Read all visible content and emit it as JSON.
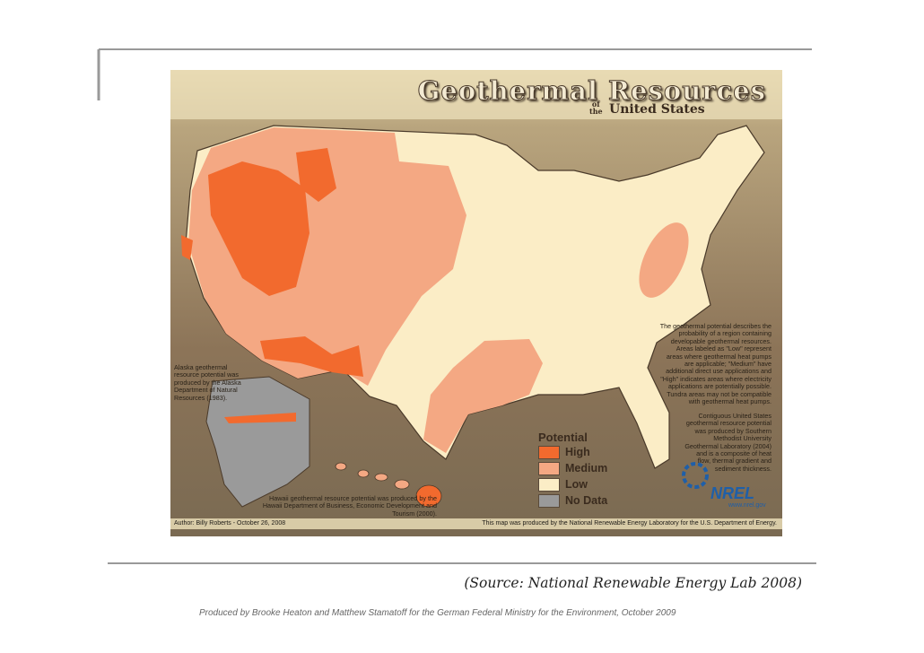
{
  "map": {
    "title": "Geothermal Resources",
    "subtitle_of": "of",
    "subtitle_the": "the",
    "subtitle": "United States",
    "notes": {
      "potential": "The geothermal potential describes the probability of a region containing developable geothermal resources. Areas labeled as \"Low\" represent areas where geothermal heat pumps are applicable; \"Medium\" have additional direct use applications and \"High\" indicates areas where electricity applications are potentially possible. Tundra areas may not be compatible with geothermal heat pumps.",
      "contiguous": "Contiguous United States geothermal resource potential was produced by Southern Methodist University Geothermal Laboratory (2004) and is a composite of heat flow, thermal gradient and sediment thickness.",
      "alaska": "Alaska geothermal resource potential was produced by the Alaska Department of Natural Resources (1983).",
      "hawaii": "Hawaii geothermal resource potential was produced by the Hawaii Department of Business, Economic Development and Tourism (2000)."
    },
    "legend": {
      "title": "Potential",
      "items": [
        "High",
        "Medium",
        "Low",
        "No Data"
      ]
    },
    "logo": "NREL",
    "url": "www.nrel.gov",
    "author": "Author: Billy Roberts - October 26, 2008",
    "producer": "This map was produced by the National Renewable Energy Laboratory for the U.S. Department of Energy."
  },
  "slide": {
    "source": "(Source: National Renewable Energy Lab 2008)",
    "credit": "Produced by Brooke Heaton and Matthew Stamatoff for the German Federal Ministry for the Environment, October 2009"
  }
}
